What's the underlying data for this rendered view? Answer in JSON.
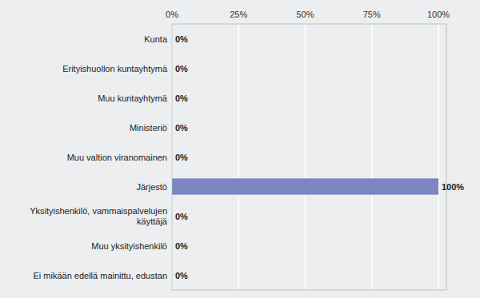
{
  "chart_data": {
    "type": "bar",
    "orientation": "horizontal",
    "categories": [
      "Kunta",
      "Erityishuollon kuntayhtymä",
      "Muu kuntayhtymä",
      "Ministeriö",
      "Muu valtion viranomainen",
      "Järjestö",
      "Yksityishenkilö, vammaispalvelujen\nkäyttäjä",
      "Muu yksityishenkilö",
      "Ei mikään edellä mainittu, edustan"
    ],
    "values": [
      0,
      0,
      0,
      0,
      0,
      100,
      0,
      0,
      0
    ],
    "value_labels": [
      "0%",
      "0%",
      "0%",
      "0%",
      "0%",
      "100%",
      "0%",
      "0%",
      "0%"
    ],
    "data_labels": true,
    "color": "#7b86c2",
    "xlim": [
      0,
      103
    ],
    "xticks": [
      {
        "value": 0,
        "label": "0%"
      },
      {
        "value": 25,
        "label": "25%"
      },
      {
        "value": 50,
        "label": "50%"
      },
      {
        "value": 75,
        "label": "75%"
      },
      {
        "value": 100,
        "label": "100%"
      }
    ],
    "grid": true
  }
}
